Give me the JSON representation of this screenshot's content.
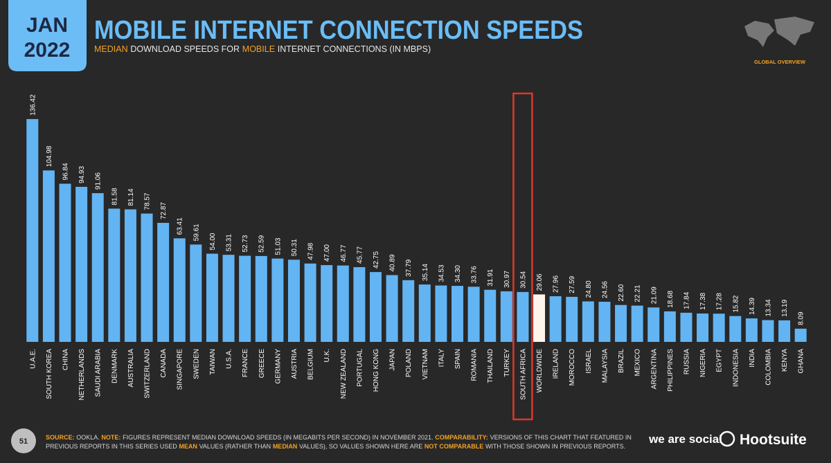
{
  "chart_data": {
    "type": "bar",
    "header": [
      "JAN",
      "2022"
    ],
    "title": "MOBILE INTERNET CONNECTION SPEEDS",
    "subtitle": [
      "MEDIAN",
      "DOWNLOAD SPEEDS FOR",
      "MOBILE",
      "INTERNET CONNECTIONS (IN MBPS)"
    ],
    "section": "GLOBAL OVERVIEW",
    "page_number": "51",
    "footnote": [
      "SOURCE:",
      "OOKLA.",
      "NOTE:",
      "FIGURES REPRESENT MEDIAN DOWNLOAD SPEEDS (IN MEGABITS PER SECOND) IN NOVEMBER 2021.",
      "COMPARABILITY:",
      "VERSIONS OF THIS CHART THAT FEATURED IN PREVIOUS REPORTS IN THIS SERIES USED",
      "MEAN",
      "VALUES (RATHER THAN",
      "MEDIAN",
      "VALUES), SO VALUES SHOWN HERE ARE",
      "NOT COMPARABLE",
      "WITH THOSE SHOWN IN PREVIOUS REPORTS."
    ],
    "logos": [
      "we are social",
      "Hootsuite"
    ],
    "categories": [
      "U.A.E.",
      "SOUTH KOREA",
      "CHINA",
      "NETHERLANDS",
      "SAUDI ARABIA",
      "DENMARK",
      "AUSTRALIA",
      "SWITZERLAND",
      "CANADA",
      "SINGAPORE",
      "SWEDEN",
      "TAIWAN",
      "U.S.A.",
      "FRANCE",
      "GREECE",
      "GERMANY",
      "AUSTRIA",
      "BELGIUM",
      "U.K.",
      "NEW ZEALAND",
      "PORTUGAL",
      "HONG KONG",
      "JAPAN",
      "POLAND",
      "VIETNAM",
      "ITALY",
      "SPAIN",
      "ROMANIA",
      "THAILAND",
      "TURKEY",
      "SOUTH AFRICA",
      "WORLDWIDE",
      "IRELAND",
      "MOROCCO",
      "ISRAEL",
      "MALAYSIA",
      "BRAZIL",
      "MEXICO",
      "ARGENTINA",
      "PHILIPPINES",
      "RUSSIA",
      "NIGERIA",
      "EGYPT",
      "INDONESIA",
      "INDIA",
      "COLOMBIA",
      "KENYA",
      "GHANA"
    ],
    "values": [
      136.42,
      104.98,
      96.84,
      94.93,
      91.06,
      81.58,
      81.14,
      78.57,
      72.87,
      63.41,
      59.61,
      54.0,
      53.31,
      52.73,
      52.59,
      51.03,
      50.31,
      47.98,
      47.0,
      46.77,
      45.77,
      42.75,
      40.89,
      37.79,
      35.14,
      34.53,
      34.3,
      33.76,
      31.91,
      30.97,
      30.54,
      29.06,
      27.96,
      27.59,
      24.8,
      24.56,
      22.6,
      22.21,
      21.09,
      18.68,
      17.84,
      17.38,
      17.28,
      15.82,
      14.39,
      13.34,
      13.19,
      8.09
    ],
    "value_labels": [
      "136.42",
      "104.98",
      "96.84",
      "94.93",
      "91.06",
      "81.58",
      "81.14",
      "78.57",
      "72.87",
      "63.41",
      "59.61",
      "54.00",
      "53.31",
      "52.73",
      "52.59",
      "51.03",
      "50.31",
      "47.98",
      "47.00",
      "46.77",
      "45.77",
      "42.75",
      "40.89",
      "37.79",
      "35.14",
      "34.53",
      "34.30",
      "33.76",
      "31.91",
      "30.97",
      "30.54",
      "29.06",
      "27.96",
      "27.59",
      "24.80",
      "24.56",
      "22.60",
      "22.21",
      "21.09",
      "18.68",
      "17.84",
      "17.38",
      "17.28",
      "15.82",
      "14.39",
      "13.34",
      "13.19",
      "8.09"
    ],
    "color": "#63b4f2",
    "highlight": "WORLDWIDE",
    "highlight_color": "#fdf4ec",
    "outlined": "SOUTH AFRICA",
    "outline_color": "#e0362c"
  }
}
